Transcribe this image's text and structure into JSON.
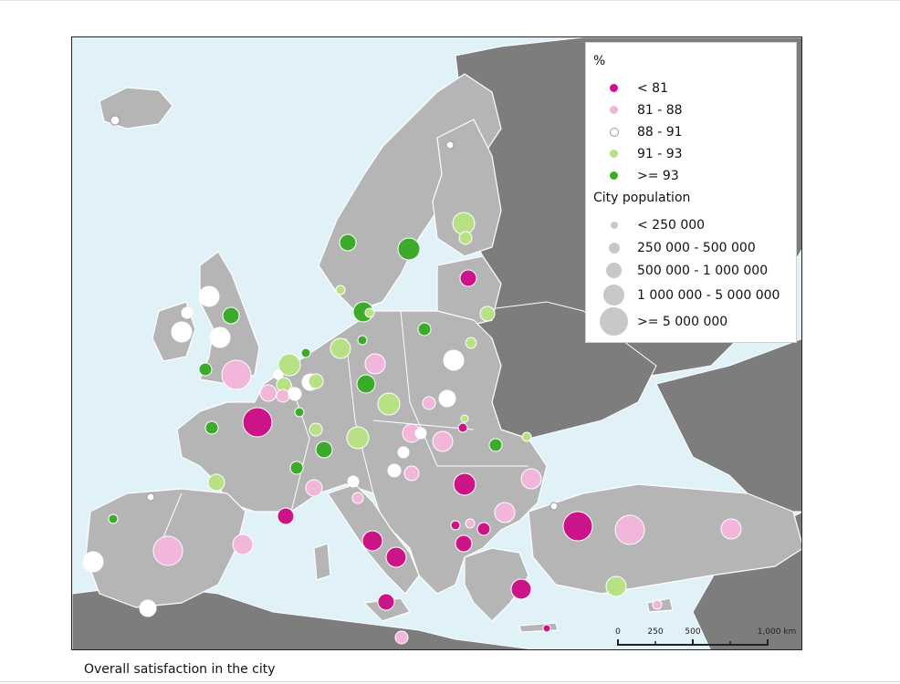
{
  "map_title": "Overall satisfaction in the city",
  "legend": {
    "satisfaction_title": "%",
    "satisfaction_classes": [
      {
        "label": "< 81",
        "color": "#cc1489",
        "key": "lt81"
      },
      {
        "label": "81 - 88",
        "color": "#f1b6da",
        "key": "81_88"
      },
      {
        "label": "88 - 91",
        "color": "#ffffff",
        "key": "88_91"
      },
      {
        "label": "91 - 93",
        "color": "#b8e186",
        "key": "91_93"
      },
      {
        "label": ">= 93",
        "color": "#3caa2a",
        "key": "ge93"
      }
    ],
    "population_title": "City population",
    "population_classes": [
      {
        "label": "< 250 000",
        "size_class": 1
      },
      {
        "label": "250 000 - 500 000",
        "size_class": 2
      },
      {
        "label": "500 000 - 1 000 000",
        "size_class": 3
      },
      {
        "label": "1 000 000 - 5 000 000",
        "size_class": 4
      },
      {
        "label": ">= 5 000 000",
        "size_class": 5
      }
    ]
  },
  "scale_bar": {
    "labels": [
      "0",
      "250",
      "500",
      "1,000 km"
    ]
  },
  "colors": {
    "sea": "#e0f1f8",
    "land_eu": "#b5b5b5",
    "land_other": "#7d7d7d",
    "borders": "#ffffff"
  }
}
